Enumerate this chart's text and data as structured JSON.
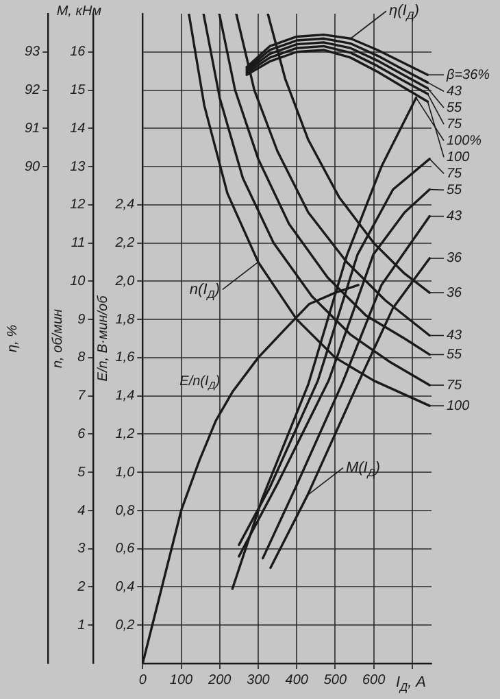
{
  "chart_data": {
    "type": "line",
    "xlabel": "I$_{Д}$, А",
    "ylabel": "n, об/мин",
    "y2label": "E/n, В·мин/об",
    "y3label": "η, %",
    "xlim": [
      0,
      750
    ],
    "xticks": [
      0,
      100,
      200,
      300,
      400,
      500,
      600,
      {
        "value": 700,
        "label": null
      }
    ],
    "ylim": [
      0,
      17
    ],
    "yticks": [
      1,
      2,
      3,
      4,
      5,
      6,
      7,
      8,
      9,
      10,
      11,
      12,
      13,
      14,
      15,
      16
    ],
    "y2lim": [
      0,
      3.4
    ],
    "y2ticks": [
      {
        "value": 0.2,
        "label": "0,2"
      },
      {
        "value": 0.4,
        "label": "0,4"
      },
      {
        "value": 0.6,
        "label": "0,6"
      },
      {
        "value": 0.8,
        "label": "0,8"
      },
      {
        "value": 1.0,
        "label": "1,0"
      },
      {
        "value": 1.2,
        "label": "1,2"
      },
      {
        "value": 1.4,
        "label": "1,4"
      },
      {
        "value": 1.6,
        "label": "1,6"
      },
      {
        "value": 1.8,
        "label": "1,8"
      },
      {
        "value": 2.0,
        "label": "2,0"
      },
      {
        "value": 2.2,
        "label": "2,2"
      },
      {
        "value": 2.4,
        "label": "2,4"
      }
    ],
    "y3lim": [
      77,
      94
    ],
    "y3ticks": [
      90,
      91,
      92,
      93
    ],
    "grid": true,
    "legend": "right",
    "marker": "none",
    "annotations": [
      "M, кНм",
      {
        "text": "η(I$_{Д}$)",
        "x": 540,
        "y": 16.35
      },
      {
        "text": "n(I$_{Д}$)",
        "x": 300,
        "y": 10.5
      },
      {
        "text": "M(I$_{Д}$)",
        "x": 428,
        "y": 4.4
      }
    ],
    "series": [
      {
        "name": "β=36%",
        "color": "#1a1a1a",
        "axis": "y3",
        "x": [
          270,
          330,
          400,
          470,
          540,
          610,
          680,
          740
        ],
        "values": [
          92.6,
          93.15,
          93.4,
          93.45,
          93.35,
          93.05,
          92.7,
          92.4
        ]
      },
      {
        "name": "43",
        "color": "#1a1a1a",
        "axis": "y3",
        "x": [
          270,
          330,
          400,
          470,
          540,
          610,
          680,
          740
        ],
        "values": [
          92.55,
          93.05,
          93.3,
          93.35,
          93.22,
          92.9,
          92.52,
          92.2
        ]
      },
      {
        "name": "55",
        "color": "#1a1a1a",
        "axis": "y3",
        "x": [
          270,
          330,
          400,
          470,
          540,
          610,
          680,
          740
        ],
        "values": [
          92.5,
          92.95,
          93.2,
          93.25,
          93.1,
          92.77,
          92.38,
          92.05
        ]
      },
      {
        "name": "75",
        "color": "#1a1a1a",
        "axis": "y3",
        "x": [
          270,
          330,
          400,
          470,
          540,
          610,
          680,
          740
        ],
        "values": [
          92.45,
          92.85,
          93.1,
          93.15,
          92.98,
          92.63,
          92.23,
          91.9
        ]
      },
      {
        "name": "100",
        "color": "#1a1a1a",
        "axis": "y3",
        "x": [
          270,
          330,
          400,
          470,
          540,
          610,
          680,
          740
        ],
        "values": [
          92.4,
          92.75,
          93.0,
          93.05,
          92.85,
          92.48,
          92.06,
          91.7
        ]
      },
      {
        "name": "100%",
        "color": "#1a1a1a",
        "x": [
          233,
          310,
          430,
          531,
          620,
          710
        ],
        "values": [
          1.95,
          4.3,
          7.3,
          10.7,
          13.0,
          14.8
        ]
      },
      {
        "name": "75",
        "color": "#1a1a1a",
        "x": [
          250,
          330,
          455,
          558,
          650,
          745
        ],
        "values": [
          3.1,
          4.6,
          7.4,
          10.7,
          12.4,
          13.2
        ]
      },
      {
        "name": "55",
        "color": "#1a1a1a",
        "x": [
          250,
          350,
          483,
          599,
          680,
          745
        ],
        "values": [
          2.8,
          4.7,
          7.4,
          10.7,
          11.8,
          12.4
        ]
      },
      {
        "name": "43",
        "color": "#1a1a1a",
        "x": [
          312,
          397,
          517,
          620,
          745
        ],
        "values": [
          2.75,
          4.6,
          7.3,
          9.9,
          11.7
        ]
      },
      {
        "name": "36",
        "color": "#1a1a1a",
        "x": [
          332,
          428,
          558,
          650,
          745
        ],
        "values": [
          2.5,
          4.4,
          7.3,
          9.3,
          10.6
        ]
      },
      {
        "name": "36",
        "color": "#1a1a1a",
        "x": [
          325,
          370,
          430,
          510,
          600,
          680,
          745
        ],
        "values": [
          17,
          15.3,
          13.7,
          12.2,
          11.0,
          10.2,
          9.7
        ]
      },
      {
        "name": "43",
        "color": "#1a1a1a",
        "x": [
          243,
          290,
          350,
          430,
          530,
          630,
          745
        ],
        "values": [
          17,
          15.0,
          13.4,
          11.8,
          10.5,
          9.5,
          8.58
        ]
      },
      {
        "name": "55",
        "color": "#1a1a1a",
        "x": [
          199,
          240,
          300,
          380,
          480,
          580,
          680,
          745
        ],
        "values": [
          17,
          15.0,
          13.2,
          11.5,
          10.1,
          9.1,
          8.5,
          8.08
        ]
      },
      {
        "name": "75",
        "color": "#1a1a1a",
        "x": [
          158,
          200,
          260,
          340,
          440,
          540,
          640,
          745
        ],
        "values": [
          17,
          14.8,
          12.7,
          11.0,
          9.6,
          8.6,
          7.9,
          7.28
        ]
      },
      {
        "name": "100",
        "color": "#1a1a1a",
        "x": [
          120,
          160,
          220,
          300,
          400,
          500,
          600,
          745
        ],
        "values": [
          17,
          14.6,
          12.3,
          10.5,
          9.0,
          8.0,
          7.4,
          6.74
        ]
      },
      {
        "name": "E/n(I$_{Д}$)",
        "color": "#1a1a1a",
        "axis": "y2",
        "x": [
          0,
          50,
          100,
          147,
          190,
          233,
          300,
          370,
          432,
          500,
          560
        ],
        "values": [
          0,
          0.4,
          0.8,
          1.06,
          1.27,
          1.42,
          1.6,
          1.75,
          1.88,
          1.94,
          1.98
        ]
      }
    ]
  }
}
